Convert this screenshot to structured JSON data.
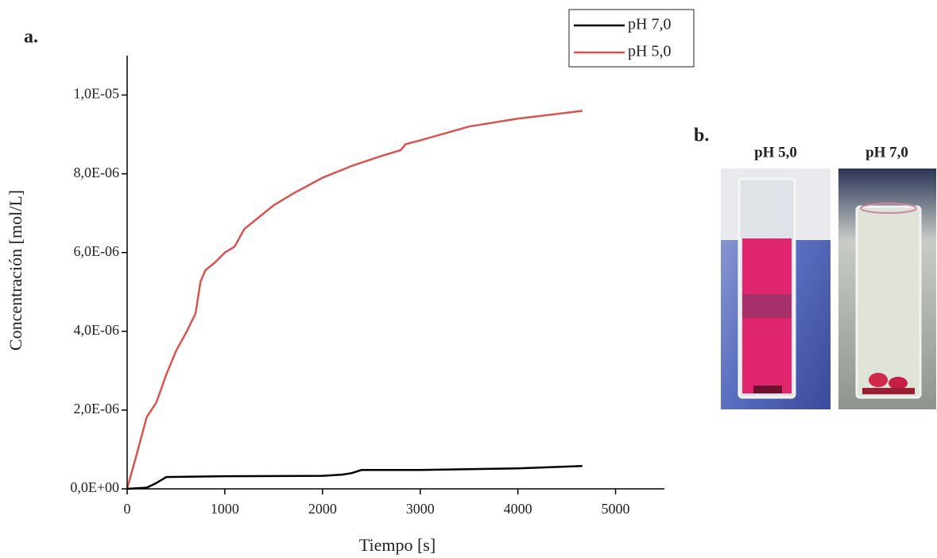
{
  "chart_data": {
    "type": "line",
    "annotation": "a.",
    "xlabel": "Tiempo [s]",
    "ylabel": "Concentración [mol/L]",
    "xlim": [
      0,
      5500
    ],
    "xticks": [
      0,
      1000,
      2000,
      3000,
      4000,
      5000
    ],
    "ylim": [
      0,
      1.1e-05
    ],
    "yticks": [
      {
        "value": 0,
        "label": "0,0E+00"
      },
      {
        "value": 2e-06,
        "label": "2,0E-06"
      },
      {
        "value": 4e-06,
        "label": "4,0E-06"
      },
      {
        "value": 6e-06,
        "label": "6,0E-06"
      },
      {
        "value": 8e-06,
        "label": "8,0E-06"
      },
      {
        "value": 1e-05,
        "label": "1,0E-05"
      }
    ],
    "legend": "upper-right",
    "series": [
      {
        "name": "pH 7,0",
        "color": "#000000",
        "x": [
          0,
          200,
          300,
          400,
          1000,
          2000,
          2200,
          2300,
          2400,
          3000,
          4000,
          4660
        ],
        "values": [
          0,
          3e-08,
          1.5e-07,
          3e-07,
          3.2e-07,
          3.3e-07,
          3.6e-07,
          4e-07,
          4.8e-07,
          4.8e-07,
          5.2e-07,
          5.8e-07
        ]
      },
      {
        "name": "pH 5,0",
        "color": "#d9534f",
        "x": [
          0,
          100,
          200,
          300,
          400,
          500,
          600,
          700,
          750,
          800,
          900,
          1000,
          1100,
          1200,
          1300,
          1500,
          1700,
          2000,
          2300,
          2600,
          2800,
          2850,
          3000,
          3500,
          4000,
          4500,
          4660
        ],
        "values": [
          0,
          9e-07,
          1.82e-06,
          2.2e-06,
          2.9e-06,
          3.5e-06,
          3.95e-06,
          4.45e-06,
          5.25e-06,
          5.55e-06,
          5.75e-06,
          6e-06,
          6.15e-06,
          6.6e-06,
          6.8e-06,
          7.2e-06,
          7.5e-06,
          7.9e-06,
          8.2e-06,
          8.45e-06,
          8.6e-06,
          8.75e-06,
          8.85e-06,
          9.2e-06,
          9.4e-06,
          9.55e-06,
          9.6e-06
        ]
      }
    ]
  },
  "photos": {
    "label": "b.",
    "captions": [
      "pH 5,0",
      "pH 7,0"
    ]
  }
}
